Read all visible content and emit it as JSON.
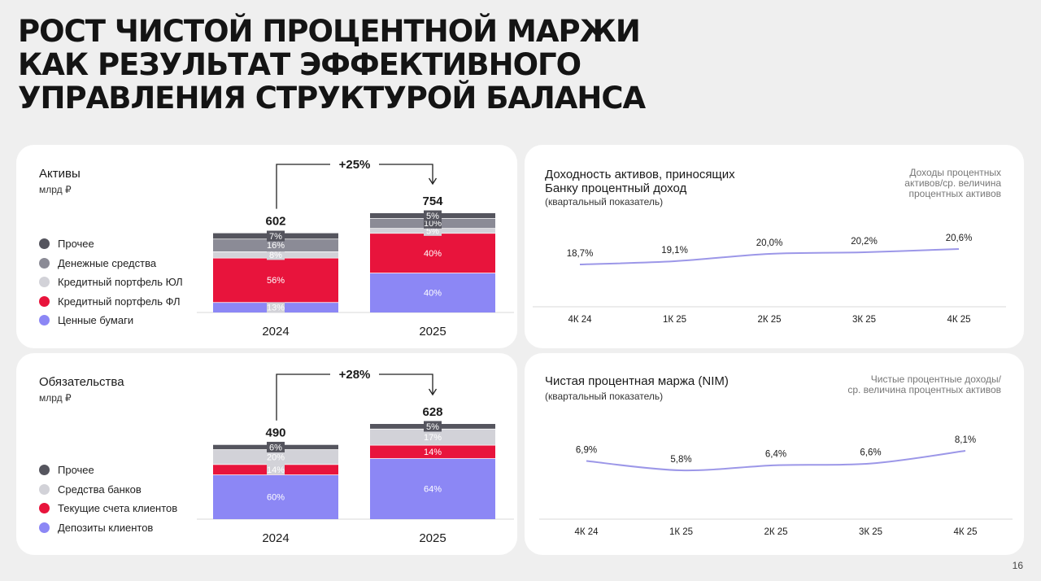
{
  "title_lines": [
    "РОСТ ЧИСТОЙ ПРОЦЕНТНОЙ МАРЖИ",
    "КАК РЕЗУЛЬТАТ ЭФФЕКТИВНОГО",
    "УПРАВЛЕНИЯ СТРУКТУРОЙ БАЛАНСА"
  ],
  "page_number": "16",
  "colors": {
    "other": "#55555e",
    "cash": "#8b8b96",
    "corp_loans": "#d2d2d8",
    "retail_loans": "#e8143c",
    "securities": "#8c87f5",
    "line": "#9c97e8",
    "axis": "#d8d8d8"
  },
  "icons": [
    "arrow-down-icon"
  ],
  "chart_data": [
    {
      "type": "bar",
      "id": "assets",
      "title": "Активы",
      "unit": "млрд ₽",
      "categories": [
        "2024",
        "2025"
      ],
      "totals": [
        602,
        754
      ],
      "growth_label": "+25%",
      "series": [
        {
          "name": "Ценные бумаги",
          "color_key": "securities",
          "values": [
            13,
            40
          ],
          "labels": [
            "13%",
            "40%"
          ]
        },
        {
          "name": "Кредитный портфель ФЛ",
          "color_key": "retail_loans",
          "values": [
            56,
            40
          ],
          "labels": [
            "56%",
            "40%"
          ]
        },
        {
          "name": "Кредитный портфель ЮЛ",
          "color_key": "corp_loans",
          "values": [
            8,
            5
          ],
          "labels": [
            "8%",
            "5%"
          ]
        },
        {
          "name": "Денежные средства",
          "color_key": "cash",
          "values": [
            16,
            10
          ],
          "labels": [
            "16%",
            "10%"
          ]
        },
        {
          "name": "Прочее",
          "color_key": "other",
          "values": [
            7,
            5
          ],
          "labels": [
            "7%",
            "5%"
          ]
        }
      ],
      "legend_order": [
        "Прочее",
        "Денежные средства",
        "Кредитный портфель ЮЛ",
        "Кредитный портфель ФЛ",
        "Ценные бумаги"
      ]
    },
    {
      "type": "bar",
      "id": "liabilities",
      "title": "Обязательства",
      "unit": "млрд ₽",
      "categories": [
        "2024",
        "2025"
      ],
      "totals": [
        490,
        628
      ],
      "growth_label": "+28%",
      "series": [
        {
          "name": "Депозиты клиентов",
          "color_key": "securities",
          "values": [
            60,
            64
          ],
          "labels": [
            "60%",
            "64%"
          ]
        },
        {
          "name": "Текущие счета клиентов",
          "color_key": "retail_loans",
          "values": [
            14,
            14
          ],
          "labels": [
            "14%",
            "14%"
          ]
        },
        {
          "name": "Средства банков",
          "color_key": "corp_loans",
          "values": [
            20,
            17
          ],
          "labels": [
            "20%",
            "17%"
          ]
        },
        {
          "name": "Прочее",
          "color_key": "other",
          "values": [
            6,
            5
          ],
          "labels": [
            "6%",
            "5%"
          ]
        }
      ],
      "legend_order": [
        "Прочее",
        "Средства банков",
        "Текущие счета клиентов",
        "Депозиты клиентов"
      ]
    },
    {
      "type": "line",
      "id": "yield",
      "title_lines": [
        "Доходность активов, приносящих",
        "Банку процентный доход"
      ],
      "subtitle": "(квартальный показатель)",
      "note_lines": [
        "Доходы процентных",
        "активов/ср. величина",
        "процентных активов"
      ],
      "x": [
        "4К 24",
        "1К 25",
        "2К 25",
        "3К 25",
        "4К 25"
      ],
      "values": [
        18.7,
        19.1,
        20.0,
        20.2,
        20.6
      ],
      "labels": [
        "18,7%",
        "19,1%",
        "20,0%",
        "20,2%",
        "20,6%"
      ]
    },
    {
      "type": "line",
      "id": "nim",
      "title_lines": [
        "Чистая процентная маржа (NIM)"
      ],
      "subtitle": "(квартальный показатель)",
      "note_lines": [
        "Чистые процентные доходы/",
        "ср. величина процентных активов"
      ],
      "x": [
        "4К 24",
        "1К 25",
        "2К 25",
        "3К 25",
        "4К 25"
      ],
      "values": [
        6.9,
        5.8,
        6.4,
        6.6,
        8.1
      ],
      "labels": [
        "6,9%",
        "5,8%",
        "6,4%",
        "6,6%",
        "8,1%"
      ]
    }
  ]
}
